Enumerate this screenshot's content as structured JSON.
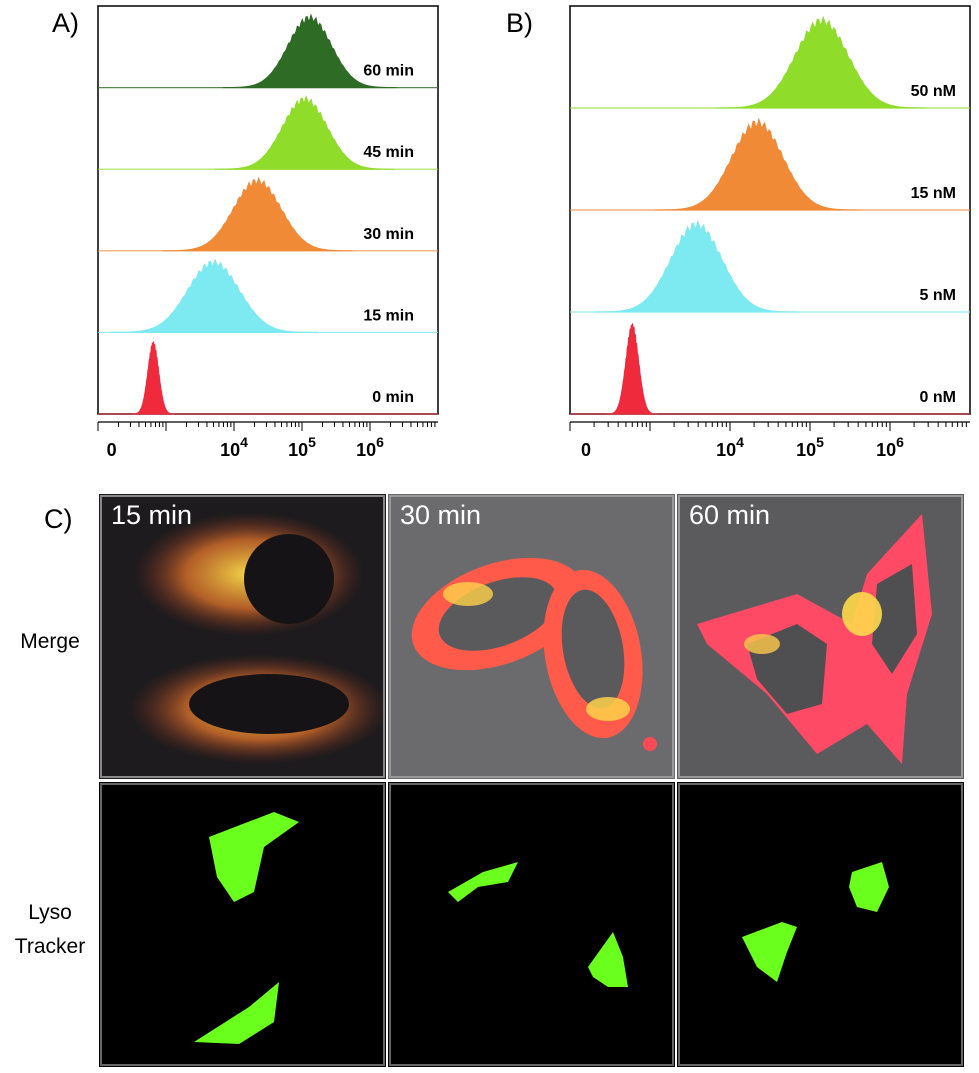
{
  "panels": {
    "a_label": "A)",
    "b_label": "B)",
    "c_label": "C)"
  },
  "chart_data": [
    {
      "type": "area",
      "panel": "A",
      "xscale": "log",
      "xticks": [
        "0",
        "10^4",
        "10^5",
        "10^6"
      ],
      "xlim": [
        100,
        10000000
      ],
      "grid": false,
      "series": [
        {
          "name": "60 min",
          "color": "#2e6b24",
          "peak_x": 130000,
          "spread_log": 0.32
        },
        {
          "name": "45 min",
          "color": "#8fdc2a",
          "peak_x": 110000,
          "spread_log": 0.33
        },
        {
          "name": "30 min",
          "color": "#f08a36",
          "peak_x": 22000,
          "spread_log": 0.35
        },
        {
          "name": "15 min",
          "color": "#7ceaf0",
          "peak_x": 5000,
          "spread_log": 0.38
        },
        {
          "name": "0 min",
          "color": "#ee2a3c",
          "peak_x": 650,
          "spread_log": 0.08
        }
      ]
    },
    {
      "type": "area",
      "panel": "B",
      "xscale": "log",
      "xticks": [
        "0",
        "10^4",
        "10^5",
        "10^6"
      ],
      "xlim": [
        100,
        10000000
      ],
      "grid": false,
      "series": [
        {
          "name": "50 nM",
          "color": "#8fdc2a",
          "peak_x": 140000,
          "spread_log": 0.33
        },
        {
          "name": "15 nM",
          "color": "#f08a36",
          "peak_x": 22000,
          "spread_log": 0.32
        },
        {
          "name": "5 nM",
          "color": "#7ceaf0",
          "peak_x": 3800,
          "spread_log": 0.32
        },
        {
          "name": "0 nM",
          "color": "#ee2a3c",
          "peak_x": 600,
          "spread_log": 0.08
        }
      ]
    }
  ],
  "micrographs": {
    "row_labels": [
      "Merge",
      "Lyso\nTracker"
    ],
    "times": [
      "15 min",
      "30 min",
      "60 min"
    ]
  },
  "colors": {
    "axis": "#000000",
    "merge_bg_15": "#1d1b1d",
    "merge_bg_30": "#6b6b6d",
    "merge_bg_60": "#5b5b5e",
    "lyso_bg": "#000000",
    "lyso_green": "#6aff1c"
  }
}
